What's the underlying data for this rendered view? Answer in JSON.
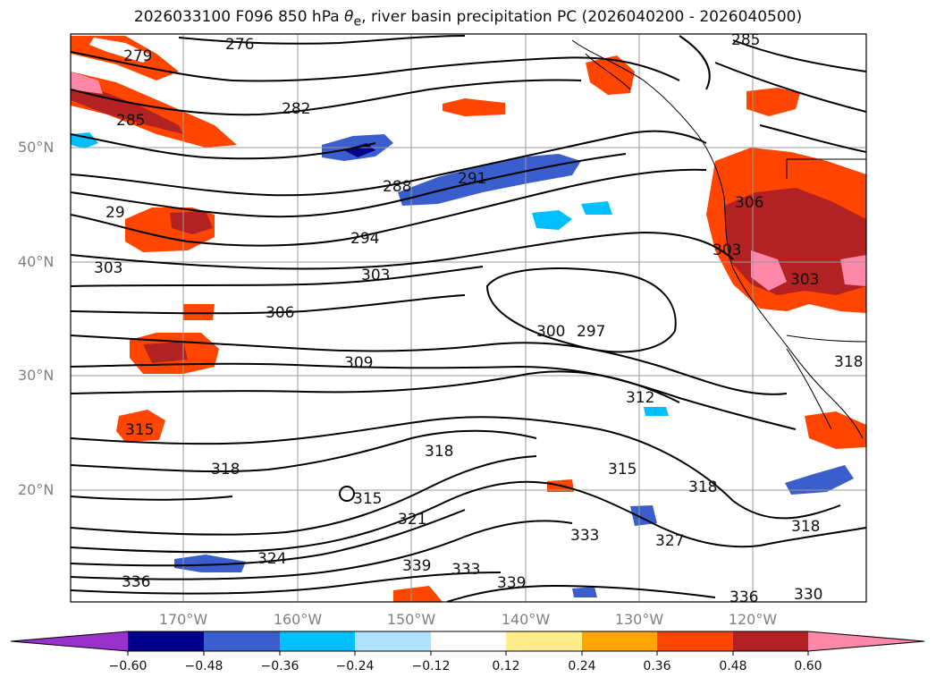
{
  "title": {
    "prefix": "2026033100 F096 850 hPa ",
    "symbol": "θ",
    "subscript": "e",
    "suffix": ", river basin precipitation PC (2026040200 - 2026040500)"
  },
  "axes": {
    "lat_labels": [
      "50°N",
      "40°N",
      "30°N",
      "20°N"
    ],
    "lon_labels": [
      "170°W",
      "160°W",
      "150°W",
      "140°W",
      "130°W",
      "120°W"
    ],
    "grid": true,
    "tick_color": "#808080"
  },
  "contour_labels": [
    "276",
    "279",
    "282",
    "285",
    "285",
    "288",
    "291",
    "294",
    "29",
    "303",
    "303",
    "306",
    "309",
    "303",
    "300",
    "297",
    "312",
    "315",
    "315",
    "318",
    "318",
    "315",
    "318",
    "318",
    "321",
    "324",
    "327",
    "333",
    "333",
    "336",
    "339",
    "339",
    "330",
    "336",
    "303",
    "306",
    "318"
  ],
  "colorbar": {
    "ticks": [
      "−0.60",
      "−0.48",
      "−0.36",
      "−0.24",
      "−0.12",
      "0.12",
      "0.24",
      "0.36",
      "0.48",
      "0.60"
    ],
    "colors": [
      "#9932CC",
      "#00008B",
      "#3A5FCD",
      "#00BFFF",
      "#B0E2FF",
      "#FFFFFF",
      "#FFEC8B",
      "#FFA500",
      "#FF4500",
      "#B22222",
      "#FF88AA"
    ],
    "extend": "both"
  }
}
